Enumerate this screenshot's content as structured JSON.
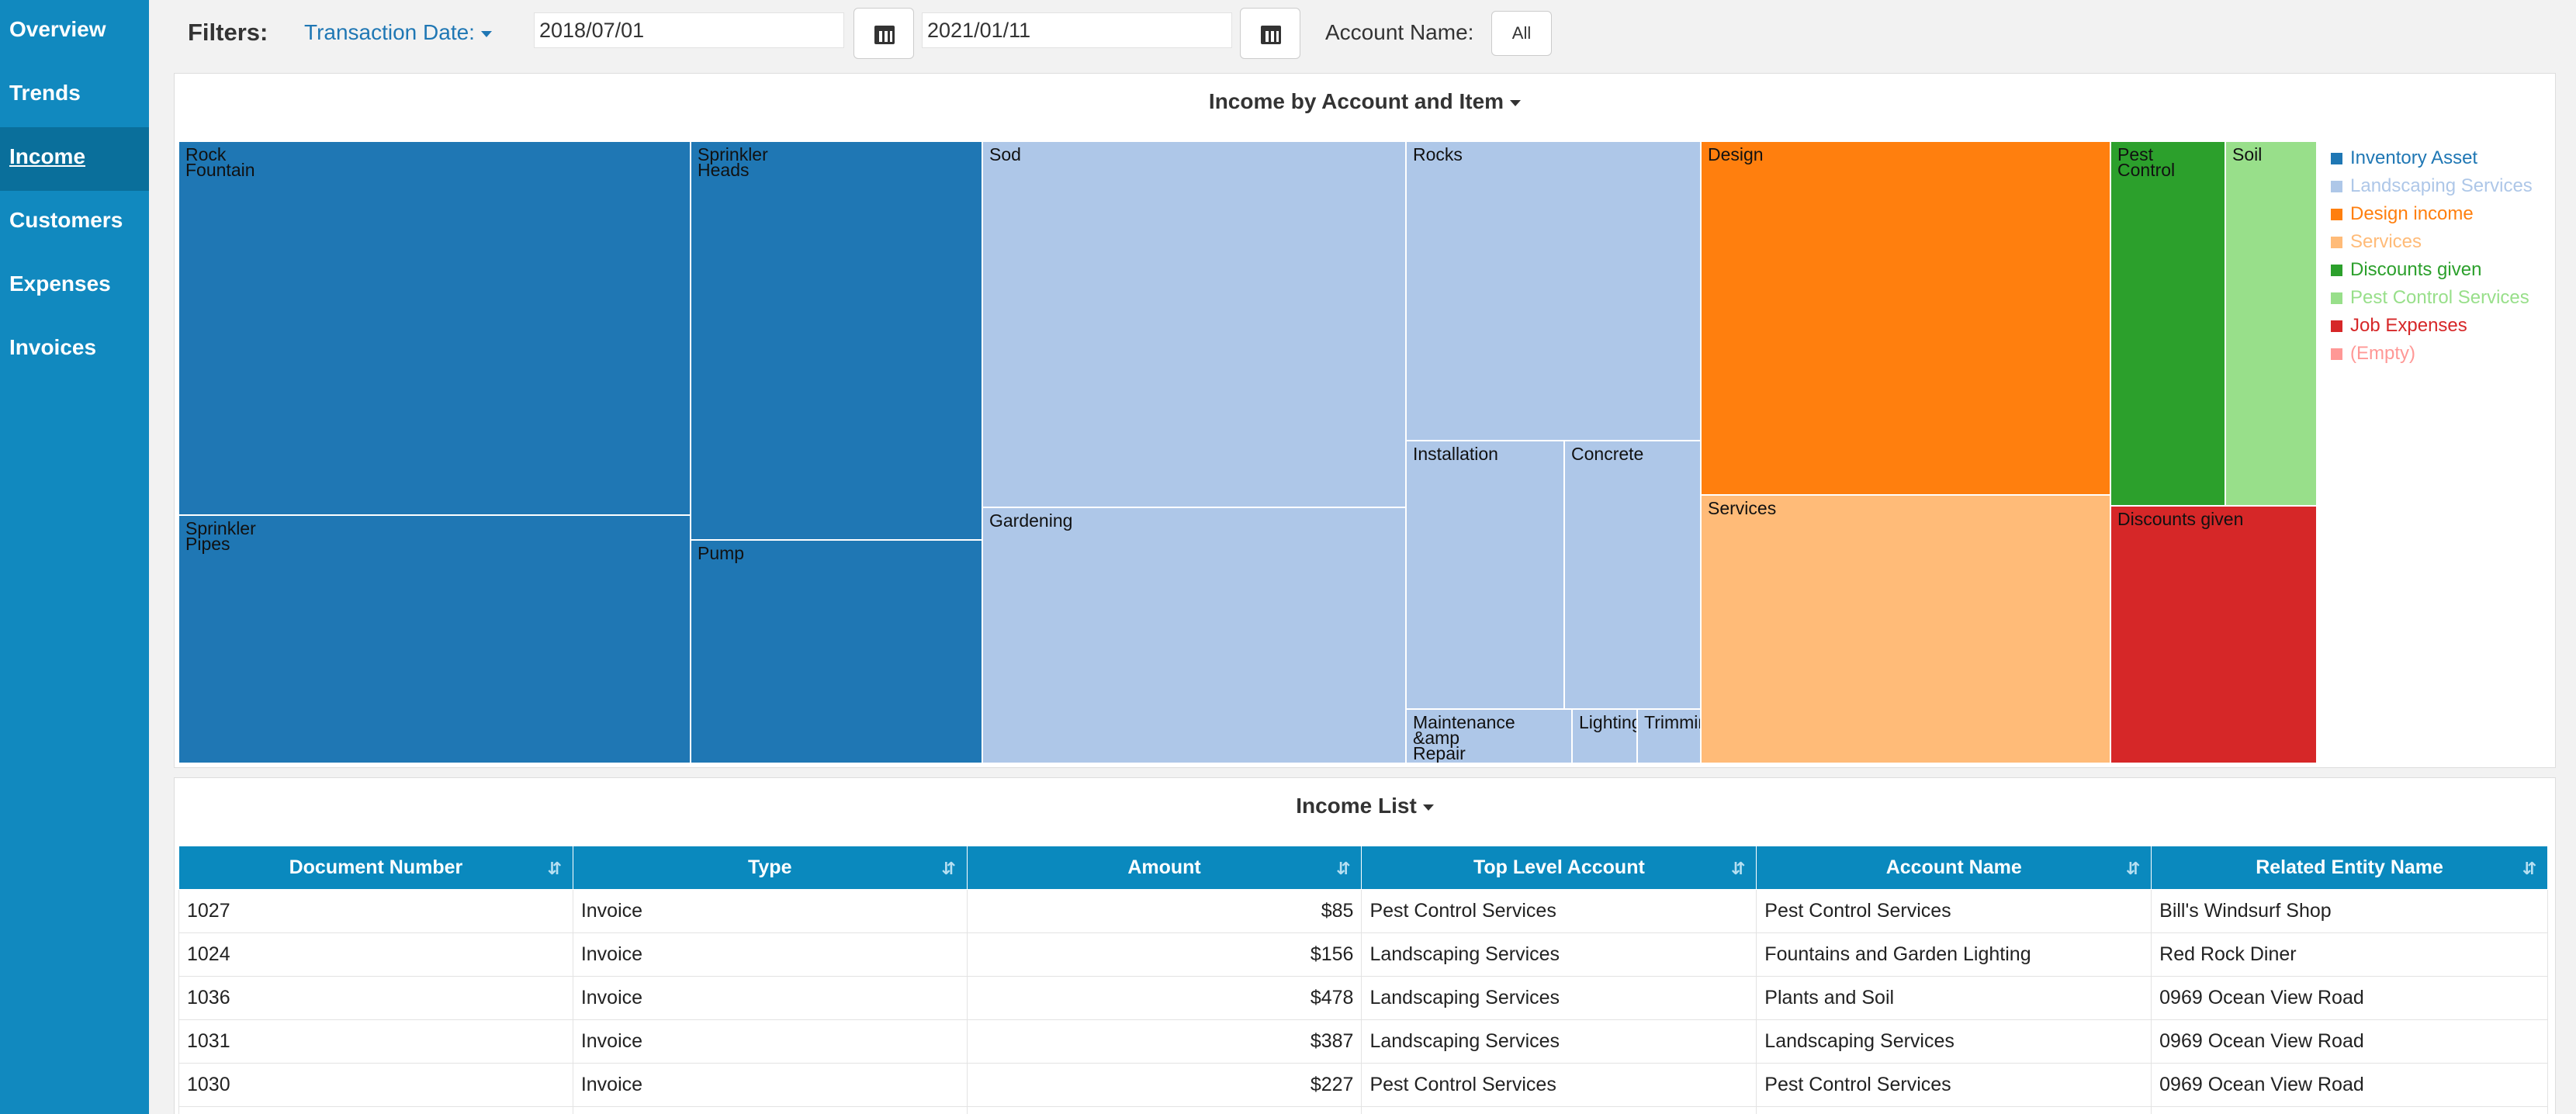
{
  "nav": [
    {
      "label": "Overview",
      "active": false
    },
    {
      "label": "Trends",
      "active": false
    },
    {
      "label": "Income",
      "active": true
    },
    {
      "label": "Customers",
      "active": false
    },
    {
      "label": "Expenses",
      "active": false
    },
    {
      "label": "Invoices",
      "active": false
    }
  ],
  "filters": {
    "label": "Filters:",
    "date_label": "Transaction Date:",
    "start_date": "2018/07/01",
    "end_date": "2021/01/11",
    "account_label": "Account Name:",
    "account_value": "All"
  },
  "treemap_panel": {
    "title": "Income by Account and Item"
  },
  "treemap": {
    "tiles": [
      {
        "label": "Rock\nFountain",
        "color": "#1f77b4"
      },
      {
        "label": "Sprinkler\nPipes",
        "color": "#1f77b4"
      },
      {
        "label": "Sprinkler\nHeads",
        "color": "#1f77b4"
      },
      {
        "label": "Pump",
        "color": "#1f77b4"
      },
      {
        "label": "Sod",
        "color": "#aec7e8"
      },
      {
        "label": "Gardening",
        "color": "#aec7e8"
      },
      {
        "label": "Rocks",
        "color": "#aec7e8"
      },
      {
        "label": "Installation",
        "color": "#aec7e8"
      },
      {
        "label": "Concrete",
        "color": "#aec7e8"
      },
      {
        "label": "Maintenance &amp\nRepair",
        "color": "#aec7e8"
      },
      {
        "label": "Lighting",
        "color": "#aec7e8"
      },
      {
        "label": "Trimming",
        "color": "#aec7e8"
      },
      {
        "label": "Design",
        "color": "#ff7f0e"
      },
      {
        "label": "Services",
        "color": "#ffbb78"
      },
      {
        "label": "Pest\nControl",
        "color": "#2ca02c"
      },
      {
        "label": "Soil",
        "color": "#98df8a"
      },
      {
        "label": "Discounts given",
        "color": "#d62728"
      }
    ],
    "legend": [
      {
        "label": "Inventory Asset",
        "color": "#1f77b4"
      },
      {
        "label": "Landscaping Services",
        "color": "#aec7e8"
      },
      {
        "label": "Design income",
        "color": "#ff7f0e"
      },
      {
        "label": "Services",
        "color": "#ffbb78"
      },
      {
        "label": "Discounts given",
        "color": "#2ca02c"
      },
      {
        "label": "Pest Control Services",
        "color": "#98df8a"
      },
      {
        "label": "Job Expenses",
        "color": "#d62728"
      },
      {
        "label": "(Empty)",
        "color": "#ff9896"
      }
    ]
  },
  "income_list": {
    "title": "Income List",
    "columns": [
      "Document Number",
      "Type",
      "Amount",
      "Top Level Account",
      "Account Name",
      "Related Entity Name"
    ],
    "rows": [
      [
        "1027",
        "Invoice",
        "$85",
        "Pest Control Services",
        "Pest Control Services",
        "Bill's Windsurf Shop"
      ],
      [
        "1024",
        "Invoice",
        "$156",
        "Landscaping Services",
        "Fountains and Garden Lighting",
        "Red Rock Diner"
      ],
      [
        "1036",
        "Invoice",
        "$478",
        "Landscaping Services",
        "Plants and Soil",
        "0969 Ocean View Road"
      ],
      [
        "1031",
        "Invoice",
        "$387",
        "Landscaping Services",
        "Landscaping Services",
        "0969 Ocean View Road"
      ],
      [
        "1030",
        "Invoice",
        "$227",
        "Pest Control Services",
        "Pest Control Services",
        "0969 Ocean View Road"
      ],
      [
        "",
        "",
        "",
        "",
        "",
        ""
      ]
    ]
  }
}
